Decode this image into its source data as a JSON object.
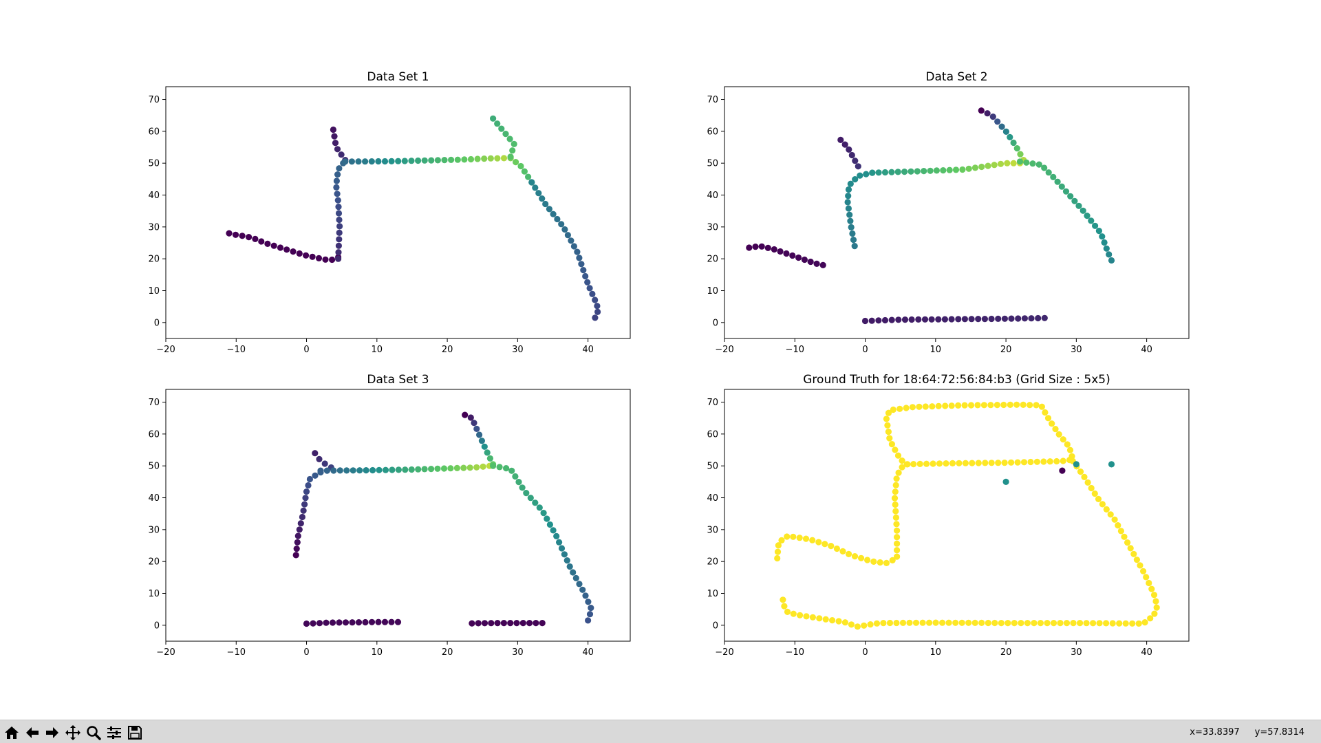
{
  "colormap": [
    "#440154",
    "#3b528b",
    "#21918c",
    "#5ec962",
    "#fde725"
  ],
  "chart_data": [
    {
      "type": "scatter",
      "title": "Data Set 1",
      "xlim": [
        -20,
        46
      ],
      "ylim": [
        -5,
        74
      ],
      "xticks": [
        -20,
        -10,
        0,
        10,
        20,
        30,
        40
      ],
      "yticks": [
        0,
        10,
        20,
        30,
        40,
        50,
        60,
        70
      ],
      "colorscale": "viridis",
      "paths": [
        {
          "pts": [
            [
              -11,
              28
            ],
            [
              -10,
              27.5
            ],
            [
              -8.5,
              27
            ],
            [
              -7,
              26
            ],
            [
              -6,
              25
            ],
            [
              -4.5,
              24
            ],
            [
              -3,
              23
            ],
            [
              -1.5,
              22
            ],
            [
              0,
              21
            ],
            [
              1.5,
              20.3
            ],
            [
              2.5,
              19.8
            ],
            [
              3.5,
              19.6
            ],
            [
              4.5,
              20.5
            ]
          ],
          "c": [
            0,
            0
          ]
        },
        {
          "pts": [
            [
              4.5,
              20
            ],
            [
              4.7,
              30
            ],
            [
              4.5,
              38
            ],
            [
              4.2,
              43
            ],
            [
              4.5,
              48
            ],
            [
              5.2,
              50
            ]
          ],
          "c": [
            0.12,
            0.33
          ]
        },
        {
          "pts": [
            [
              3.8,
              60.5
            ],
            [
              4.2,
              55
            ],
            [
              5.5,
              51
            ]
          ],
          "c": [
            0.05,
            0.15
          ]
        },
        {
          "pts": [
            [
              5.5,
              50.5
            ],
            [
              12,
              50.6
            ],
            [
              18,
              50.9
            ],
            [
              22,
              51.1
            ],
            [
              26,
              51.5
            ],
            [
              29,
              51.6
            ]
          ],
          "c": [
            0.35,
            0.9
          ]
        },
        {
          "pts": [
            [
              29,
              51.6
            ],
            [
              30.5,
              49
            ],
            [
              32,
              44
            ]
          ],
          "c": [
            0.8,
            0.65
          ]
        },
        {
          "pts": [
            [
              26.5,
              64
            ],
            [
              28,
              60
            ],
            [
              29.5,
              56
            ],
            [
              29,
              52
            ]
          ],
          "c": [
            0.62,
            0.72
          ]
        },
        {
          "pts": [
            [
              32,
              44
            ],
            [
              34,
              37
            ],
            [
              36.5,
              30
            ],
            [
              38.5,
              22
            ],
            [
              40,
              12
            ],
            [
              41,
              7
            ],
            [
              41.5,
              4
            ],
            [
              41,
              1.5
            ]
          ],
          "c": [
            0.45,
            0.2
          ]
        }
      ]
    },
    {
      "type": "scatter",
      "title": "Data Set 2",
      "xlim": [
        -20,
        46
      ],
      "ylim": [
        -5,
        74
      ],
      "xticks": [
        -20,
        -10,
        0,
        10,
        20,
        30,
        40
      ],
      "yticks": [
        0,
        10,
        20,
        30,
        40,
        50,
        60,
        70
      ],
      "colorscale": "viridis",
      "paths": [
        {
          "pts": [
            [
              -16.5,
              23.5
            ],
            [
              -15,
              24
            ],
            [
              -13,
              23
            ],
            [
              -11,
              21.5
            ],
            [
              -9,
              20
            ],
            [
              -7,
              18.5
            ],
            [
              -6,
              18
            ]
          ],
          "c": [
            0,
            0.02
          ]
        },
        {
          "pts": [
            [
              -3.5,
              57.3
            ],
            [
              -2.5,
              55
            ],
            [
              -1.5,
              51
            ],
            [
              -1,
              49
            ]
          ],
          "c": [
            0.08,
            0.15
          ]
        },
        {
          "pts": [
            [
              -1.5,
              24
            ],
            [
              -2,
              30
            ],
            [
              -2.5,
              38
            ],
            [
              -2.3,
              43
            ],
            [
              -1,
              46
            ],
            [
              1,
              47
            ]
          ],
          "c": [
            0.4,
            0.5
          ]
        },
        {
          "pts": [
            [
              1,
              47
            ],
            [
              8,
              47.5
            ],
            [
              14,
              48
            ],
            [
              20,
              50
            ],
            [
              22,
              50
            ]
          ],
          "c": [
            0.52,
            0.92
          ]
        },
        {
          "pts": [
            [
              16.5,
              66.5
            ],
            [
              18,
              65
            ],
            [
              20,
              60
            ],
            [
              21.5,
              55
            ],
            [
              22.5,
              51
            ]
          ],
          "c": [
            0.0,
            0.88
          ]
        },
        {
          "pts": [
            [
              22,
              50.5
            ],
            [
              25,
              49.5
            ],
            [
              27,
              45
            ],
            [
              29,
              40
            ],
            [
              31,
              35
            ],
            [
              33.5,
              28
            ],
            [
              34.5,
              22
            ],
            [
              35,
              19.5
            ]
          ],
          "c": [
            0.7,
            0.45
          ]
        },
        {
          "pts": [
            [
              0,
              0.5
            ],
            [
              5,
              0.9
            ],
            [
              10,
              1
            ],
            [
              15,
              1.1
            ],
            [
              20,
              1.2
            ],
            [
              25.5,
              1.4
            ]
          ],
          "c": [
            0.08,
            0.12
          ]
        }
      ]
    },
    {
      "type": "scatter",
      "title": "Data Set 3",
      "xlim": [
        -20,
        46
      ],
      "ylim": [
        -5,
        74
      ],
      "xticks": [
        -20,
        -10,
        0,
        10,
        20,
        30,
        40
      ],
      "yticks": [
        0,
        10,
        20,
        30,
        40,
        50,
        60,
        70
      ],
      "colorscale": "viridis",
      "paths": [
        {
          "pts": [
            [
              -1.5,
              22
            ],
            [
              -1.2,
              28
            ],
            [
              -0.5,
              35
            ],
            [
              0,
              42
            ],
            [
              0.5,
              46
            ],
            [
              2,
              48
            ]
          ],
          "c": [
            0,
            0.3
          ]
        },
        {
          "pts": [
            [
              1.2,
              54
            ],
            [
              2,
              51.5
            ],
            [
              3.5,
              49.5
            ]
          ],
          "c": [
            0.1,
            0.2
          ]
        },
        {
          "pts": [
            [
              2,
              48.5
            ],
            [
              8,
              48.6
            ],
            [
              14,
              48.8
            ],
            [
              20,
              49.2
            ],
            [
              24,
              49.5
            ],
            [
              26,
              50
            ]
          ],
          "c": [
            0.3,
            0.9
          ]
        },
        {
          "pts": [
            [
              22.5,
              66
            ],
            [
              23.5,
              65
            ],
            [
              24.5,
              60
            ],
            [
              25.5,
              55
            ],
            [
              26.5,
              50.5
            ]
          ],
          "c": [
            0.0,
            0.75
          ]
        },
        {
          "pts": [
            [
              26.5,
              50
            ],
            [
              29,
              49
            ],
            [
              31,
              42
            ],
            [
              33.5,
              36
            ],
            [
              35.5,
              28
            ],
            [
              37.5,
              18
            ],
            [
              39.5,
              10
            ],
            [
              40.5,
              5
            ],
            [
              40,
              1.5
            ]
          ],
          "c": [
            0.7,
            0.25
          ]
        },
        {
          "pts": [
            [
              0,
              0.5
            ],
            [
              3,
              0.8
            ],
            [
              7,
              0.9
            ],
            [
              10,
              1
            ],
            [
              13,
              1
            ]
          ],
          "c": [
            0.02,
            0.02
          ]
        },
        {
          "pts": [
            [
              23.5,
              0.6
            ],
            [
              27,
              0.7
            ],
            [
              30,
              0.7
            ],
            [
              33.5,
              0.7
            ]
          ],
          "c": [
            0.01,
            0.01
          ]
        }
      ]
    },
    {
      "type": "scatter",
      "title": "Ground Truth for 18:64:72:56:84:b3 (Grid Size : 5x5)",
      "xlim": [
        -20,
        46
      ],
      "ylim": [
        -5,
        74
      ],
      "xticks": [
        -20,
        -10,
        0,
        10,
        20,
        30,
        40
      ],
      "yticks": [
        0,
        10,
        20,
        30,
        40,
        50,
        60,
        70
      ],
      "colorscale": "viridis",
      "paths": [
        {
          "pts": [
            [
              -12.5,
              21
            ],
            [
              -12.3,
              26
            ],
            [
              -11,
              28
            ],
            [
              -8,
              27
            ],
            [
              -5,
              25
            ],
            [
              -2,
              22
            ],
            [
              1,
              20
            ],
            [
              3,
              19.5
            ],
            [
              4.5,
              21
            ],
            [
              4.5,
              30
            ],
            [
              4.2,
              40
            ],
            [
              4.5,
              47
            ],
            [
              5.5,
              50.5
            ],
            [
              12,
              50.8
            ],
            [
              20,
              51
            ],
            [
              28,
              51.5
            ],
            [
              29.5,
              52
            ],
            [
              29,
              56
            ],
            [
              27.5,
              60
            ],
            [
              26,
              65
            ],
            [
              25,
              69
            ],
            [
              22,
              69.2
            ],
            [
              14,
              69
            ],
            [
              7,
              68.5
            ],
            [
              3.5,
              67.5
            ],
            [
              3,
              65
            ],
            [
              3.5,
              58
            ],
            [
              5,
              52
            ],
            [
              6,
              50.5
            ]
          ],
          "c": [
            1,
            1
          ]
        },
        {
          "pts": [
            [
              29.5,
              51.5
            ],
            [
              31,
              47
            ],
            [
              33,
              40
            ],
            [
              35.5,
              33
            ],
            [
              37.5,
              25
            ],
            [
              39.5,
              17
            ],
            [
              41,
              10
            ],
            [
              41.5,
              6
            ],
            [
              41,
              3
            ],
            [
              39.5,
              0.5
            ],
            [
              36,
              0.6
            ],
            [
              30,
              0.7
            ],
            [
              20,
              0.7
            ],
            [
              10,
              0.8
            ],
            [
              2,
              0.7
            ],
            [
              0,
              0
            ],
            [
              -1,
              -0.5
            ],
            [
              -3,
              1
            ],
            [
              -6,
              2
            ],
            [
              -9,
              3
            ],
            [
              -11,
              4
            ],
            [
              -11.5,
              6
            ],
            [
              -11.7,
              8
            ]
          ],
          "c": [
            1,
            1
          ]
        }
      ],
      "extra_points": [
        {
          "x": 20,
          "y": 45,
          "c": 0.5
        },
        {
          "x": 30,
          "y": 50.5,
          "c": 0.5
        },
        {
          "x": 35,
          "y": 50.5,
          "c": 0.5
        },
        {
          "x": 28,
          "y": 48.5,
          "c": 0
        }
      ]
    }
  ],
  "toolbar": {
    "buttons": [
      {
        "name": "home-button",
        "icon": "home-icon"
      },
      {
        "name": "back-button",
        "icon": "arrow-left-icon"
      },
      {
        "name": "forward-button",
        "icon": "arrow-right-icon"
      },
      {
        "name": "pan-button",
        "icon": "move-icon"
      },
      {
        "name": "zoom-button",
        "icon": "magnifier-icon"
      },
      {
        "name": "configure-subplots-button",
        "icon": "sliders-icon"
      },
      {
        "name": "save-button",
        "icon": "floppy-disk-icon"
      }
    ],
    "coord_x": "x=33.8397",
    "coord_y": "y=57.8314"
  }
}
